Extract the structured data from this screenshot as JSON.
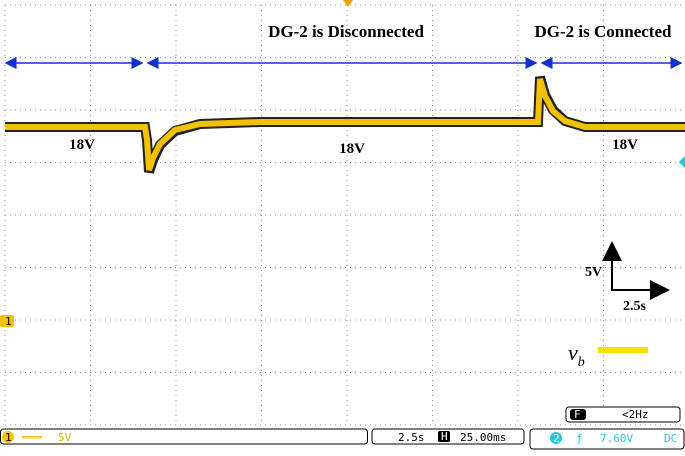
{
  "annotations": {
    "left_event": "DG-2 is Disconnected",
    "right_event": "DG-2 is Connected",
    "voltage_1": "18V",
    "voltage_2": "18V",
    "voltage_3": "18V"
  },
  "scale": {
    "vertical": "5V",
    "horizontal": "2.5s"
  },
  "legend": {
    "symbol": "v",
    "subscript": "b"
  },
  "markers": {
    "channel_1": "1"
  },
  "status_bar": {
    "ch1_label": "1",
    "ch1_coupling": "═══",
    "ch1_scale": "5V",
    "timebase": "2.5s",
    "h_icon": "H",
    "h_position": "25.00ms",
    "trigger_channel": "2",
    "trigger_icon": "ƒ",
    "trigger_level": "7.60V",
    "trigger_coupling": "DC",
    "freq_icon": "F",
    "frequency": "<2Hz"
  }
}
